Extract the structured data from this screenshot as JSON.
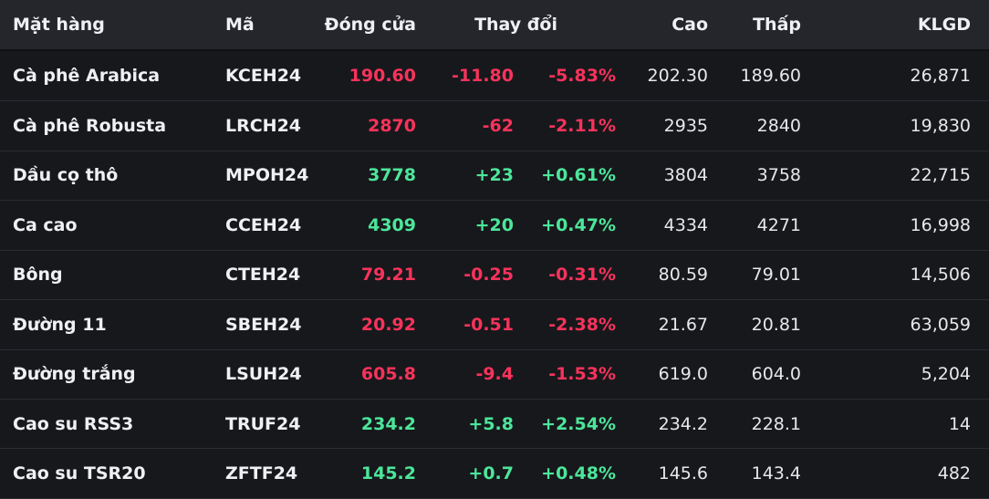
{
  "table": {
    "columns": [
      {
        "key": "name",
        "label": "Mặt hàng"
      },
      {
        "key": "code",
        "label": "Mã"
      },
      {
        "key": "close",
        "label": "Đóng cửa"
      },
      {
        "key": "change",
        "label": "Thay đổi"
      },
      {
        "key": "high",
        "label": "Cao"
      },
      {
        "key": "low",
        "label": "Thấp"
      },
      {
        "key": "volume",
        "label": "KLGD"
      }
    ],
    "colors": {
      "up": "#4ce69a",
      "down": "#f7335b"
    },
    "rows": [
      {
        "name": "Cà phê Arabica",
        "code": "KCEH24",
        "close": "190.60",
        "change": "-11.80",
        "change_pct": "-5.83%",
        "high": "202.30",
        "low": "189.60",
        "volume": "26,871",
        "direction": "down"
      },
      {
        "name": "Cà phê Robusta",
        "code": "LRCH24",
        "close": "2870",
        "change": "-62",
        "change_pct": "-2.11%",
        "high": "2935",
        "low": "2840",
        "volume": "19,830",
        "direction": "down"
      },
      {
        "name": "Dầu cọ thô",
        "code": "MPOH24",
        "close": "3778",
        "change": "+23",
        "change_pct": "+0.61%",
        "high": "3804",
        "low": "3758",
        "volume": "22,715",
        "direction": "up"
      },
      {
        "name": "Ca cao",
        "code": "CCEH24",
        "close": "4309",
        "change": "+20",
        "change_pct": "+0.47%",
        "high": "4334",
        "low": "4271",
        "volume": "16,998",
        "direction": "up"
      },
      {
        "name": "Bông",
        "code": "CTEH24",
        "close": "79.21",
        "change": "-0.25",
        "change_pct": "-0.31%",
        "high": "80.59",
        "low": "79.01",
        "volume": "14,506",
        "direction": "down"
      },
      {
        "name": "Đường 11",
        "code": "SBEH24",
        "close": "20.92",
        "change": "-0.51",
        "change_pct": "-2.38%",
        "high": "21.67",
        "low": "20.81",
        "volume": "63,059",
        "direction": "down"
      },
      {
        "name": "Đường trắng",
        "code": "LSUH24",
        "close": "605.8",
        "change": "-9.4",
        "change_pct": "-1.53%",
        "high": "619.0",
        "low": "604.0",
        "volume": "5,204",
        "direction": "down"
      },
      {
        "name": "Cao su RSS3",
        "code": "TRUF24",
        "close": "234.2",
        "change": "+5.8",
        "change_pct": "+2.54%",
        "high": "234.2",
        "low": "228.1",
        "volume": "14",
        "direction": "up"
      },
      {
        "name": "Cao su TSR20",
        "code": "ZFTF24",
        "close": "145.2",
        "change": "+0.7",
        "change_pct": "+0.48%",
        "high": "145.6",
        "low": "143.4",
        "volume": "482",
        "direction": "up"
      }
    ]
  }
}
